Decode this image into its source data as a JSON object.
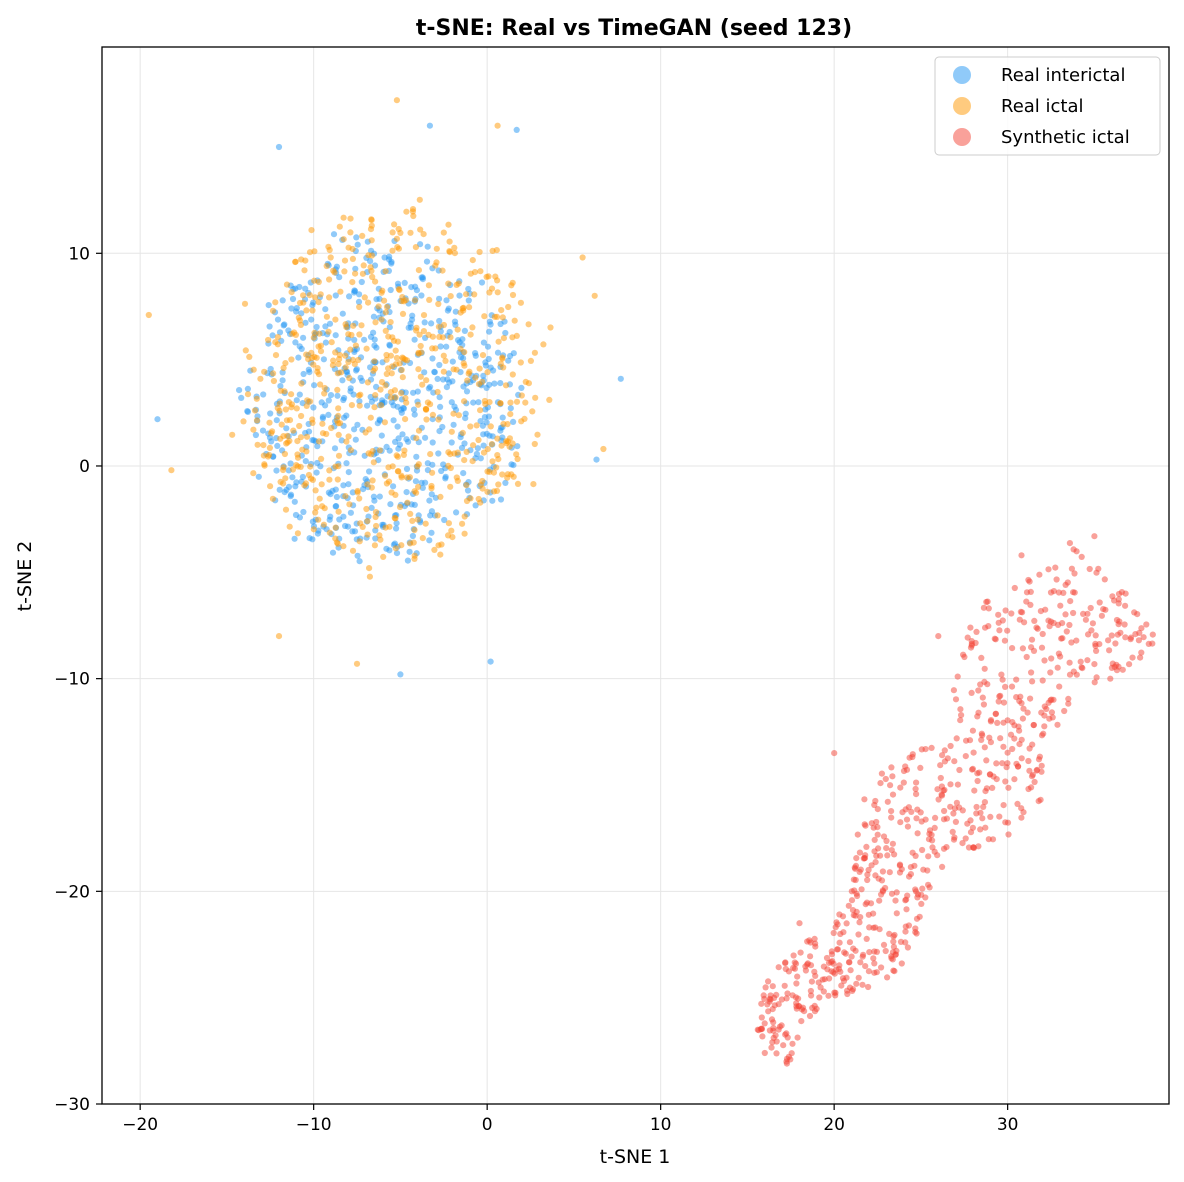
{
  "chart_data": {
    "type": "scatter",
    "title": "t-SNE: Real vs TimeGAN (seed 123)",
    "xlabel": "t-SNE 1",
    "ylabel": "t-SNE 2",
    "xlim": [
      -22.2,
      39.3
    ],
    "ylim": [
      -30,
      19.7
    ],
    "xticks": [
      -20,
      -10,
      0,
      10,
      20,
      30
    ],
    "yticks": [
      -30,
      -20,
      -10,
      0,
      10
    ],
    "grid": true,
    "legend_position": "top-right",
    "series": [
      {
        "name": "Real interictal",
        "color": "#2196F3",
        "cluster": {
          "center": [
            -6,
            3
          ],
          "spread": [
            5.5,
            5.2
          ],
          "count": 620,
          "seed": 11
        },
        "points": [
          [
            -19,
            2.2
          ],
          [
            -5,
            -9.8
          ],
          [
            0.2,
            -9.2
          ],
          [
            6.3,
            0.3
          ],
          [
            7.7,
            4.1
          ],
          [
            -12,
            15
          ],
          [
            -3.3,
            16
          ],
          [
            1.7,
            15.8
          ],
          [
            -5.5,
            3
          ],
          [
            -4.8,
            2.7
          ]
        ]
      },
      {
        "name": "Real ictal",
        "color": "#FF9800",
        "cluster": {
          "center": [
            -5.5,
            3.5
          ],
          "spread": [
            6,
            5.8
          ],
          "count": 620,
          "seed": 29
        },
        "points": [
          [
            -19.5,
            7.1
          ],
          [
            -18.2,
            -0.2
          ],
          [
            -5.2,
            17.2
          ],
          [
            0.6,
            16
          ],
          [
            5.5,
            9.8
          ],
          [
            6.2,
            8
          ],
          [
            6.7,
            0.8
          ],
          [
            -7.5,
            -9.3
          ],
          [
            -12,
            -8
          ]
        ]
      },
      {
        "name": "Synthetic ictal",
        "color": "#F44336",
        "band": {
          "start": [
            16.5,
            -27.5
          ],
          "end": [
            35.5,
            -5
          ],
          "width": 7,
          "count": 720,
          "seed": 47
        },
        "points": [
          [
            16,
            -27.6
          ],
          [
            16.8,
            -26.5
          ],
          [
            18,
            -21.5
          ],
          [
            20,
            -13.5
          ],
          [
            26,
            -8
          ],
          [
            30.8,
            -4.2
          ],
          [
            35,
            -3.3
          ],
          [
            36.8,
            -6
          ],
          [
            29,
            -16.5
          ]
        ]
      }
    ]
  }
}
